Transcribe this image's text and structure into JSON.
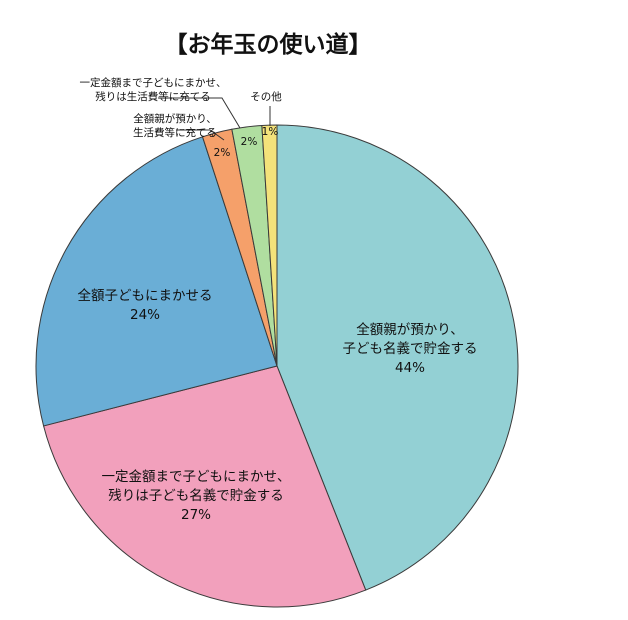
{
  "chart_data": {
    "type": "pie",
    "title": "【お年玉の使い道】",
    "slices": [
      {
        "lines": [
          "全額親が預かり、",
          "子ども名義で貯金する"
        ],
        "pct_label": "44%",
        "value": 44,
        "color": "#93d0d4"
      },
      {
        "lines": [
          "一定金額まで子どもにまかせ、",
          "残りは子ども名義で貯金する"
        ],
        "pct_label": "27%",
        "value": 27,
        "color": "#f2a0bc"
      },
      {
        "lines": [
          "全額子どもにまかせる"
        ],
        "pct_label": "24%",
        "value": 24,
        "color": "#6aaed6"
      },
      {
        "lines": [
          "全額親が預かり、",
          "生活費等に充てる"
        ],
        "pct_label": "2%",
        "value": 2,
        "color": "#f5a06a"
      },
      {
        "lines": [
          "一定金額まで子どもにまかせ、",
          "残りは生活費等に充てる"
        ],
        "pct_label": "2%",
        "value": 2,
        "color": "#b0dea0"
      },
      {
        "lines": [
          "その他"
        ],
        "pct_label": "1%",
        "value": 1,
        "color": "#f4e27a"
      }
    ]
  }
}
